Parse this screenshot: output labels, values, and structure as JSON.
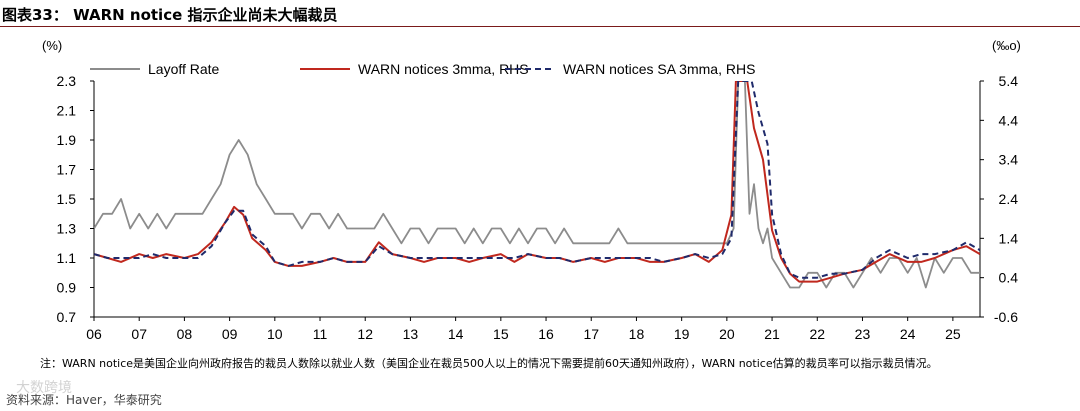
{
  "title": "图表33： WARN notice 指示企业尚未大幅裁员",
  "note": "注：WARN notice是美国企业向州政府报告的裁员人数除以就业人数（美国企业在裁员500人以上的情况下需要提前60天通知州政府），WARN notice估算的裁员率可以指示裁员情况。",
  "source": "资料来源：Haver，华泰研究",
  "watermark": "大数跨境",
  "chart_data": {
    "type": "line",
    "y_left": {
      "unit_label": "(%)",
      "range": [
        0.7,
        2.3
      ],
      "ticks": [
        "0.7",
        "0.9",
        "1.1",
        "1.3",
        "1.5",
        "1.7",
        "1.9",
        "2.1",
        "2.3"
      ]
    },
    "y_right": {
      "unit_label": "(‰o)",
      "range": [
        -0.6,
        5.4
      ],
      "ticks": [
        "-0.6",
        "0.4",
        "1.4",
        "2.4",
        "3.4",
        "4.4",
        "5.4"
      ]
    },
    "x_axis": {
      "range": [
        2006.0,
        2025.6
      ],
      "ticks": [
        "06",
        "07",
        "08",
        "09",
        "10",
        "11",
        "12",
        "13",
        "14",
        "15",
        "16",
        "17",
        "18",
        "19",
        "20",
        "21",
        "22",
        "23",
        "24",
        "25"
      ]
    },
    "legend_position": "top",
    "series": [
      {
        "name": "Layoff Rate",
        "axis": "left",
        "color": "#8c8c8c",
        "style": "solid",
        "points": [
          [
            2006.0,
            1.3
          ],
          [
            2006.2,
            1.4
          ],
          [
            2006.4,
            1.4
          ],
          [
            2006.6,
            1.5
          ],
          [
            2006.8,
            1.3
          ],
          [
            2007.0,
            1.4
          ],
          [
            2007.2,
            1.3
          ],
          [
            2007.4,
            1.4
          ],
          [
            2007.6,
            1.3
          ],
          [
            2007.8,
            1.4
          ],
          [
            2008.0,
            1.4
          ],
          [
            2008.2,
            1.4
          ],
          [
            2008.4,
            1.4
          ],
          [
            2008.6,
            1.5
          ],
          [
            2008.8,
            1.6
          ],
          [
            2009.0,
            1.8
          ],
          [
            2009.2,
            1.9
          ],
          [
            2009.4,
            1.8
          ],
          [
            2009.6,
            1.6
          ],
          [
            2009.8,
            1.5
          ],
          [
            2010.0,
            1.4
          ],
          [
            2010.2,
            1.4
          ],
          [
            2010.4,
            1.4
          ],
          [
            2010.6,
            1.3
          ],
          [
            2010.8,
            1.4
          ],
          [
            2011.0,
            1.4
          ],
          [
            2011.2,
            1.3
          ],
          [
            2011.4,
            1.4
          ],
          [
            2011.6,
            1.3
          ],
          [
            2011.8,
            1.3
          ],
          [
            2012.0,
            1.3
          ],
          [
            2012.2,
            1.3
          ],
          [
            2012.4,
            1.4
          ],
          [
            2012.6,
            1.3
          ],
          [
            2012.8,
            1.2
          ],
          [
            2013.0,
            1.3
          ],
          [
            2013.2,
            1.3
          ],
          [
            2013.4,
            1.2
          ],
          [
            2013.6,
            1.3
          ],
          [
            2013.8,
            1.3
          ],
          [
            2014.0,
            1.3
          ],
          [
            2014.2,
            1.2
          ],
          [
            2014.4,
            1.3
          ],
          [
            2014.6,
            1.2
          ],
          [
            2014.8,
            1.3
          ],
          [
            2015.0,
            1.3
          ],
          [
            2015.2,
            1.2
          ],
          [
            2015.4,
            1.3
          ],
          [
            2015.6,
            1.2
          ],
          [
            2015.8,
            1.3
          ],
          [
            2016.0,
            1.3
          ],
          [
            2016.2,
            1.2
          ],
          [
            2016.4,
            1.3
          ],
          [
            2016.6,
            1.2
          ],
          [
            2016.8,
            1.2
          ],
          [
            2017.0,
            1.2
          ],
          [
            2017.2,
            1.2
          ],
          [
            2017.4,
            1.2
          ],
          [
            2017.6,
            1.3
          ],
          [
            2017.8,
            1.2
          ],
          [
            2018.0,
            1.2
          ],
          [
            2018.2,
            1.2
          ],
          [
            2018.4,
            1.2
          ],
          [
            2018.6,
            1.2
          ],
          [
            2018.8,
            1.2
          ],
          [
            2019.0,
            1.2
          ],
          [
            2019.2,
            1.2
          ],
          [
            2019.4,
            1.2
          ],
          [
            2019.6,
            1.2
          ],
          [
            2019.8,
            1.2
          ],
          [
            2020.0,
            1.2
          ],
          [
            2020.15,
            1.3
          ],
          [
            2020.25,
            2.3
          ],
          [
            2020.4,
            2.3
          ],
          [
            2020.5,
            1.4
          ],
          [
            2020.6,
            1.6
          ],
          [
            2020.7,
            1.3
          ],
          [
            2020.8,
            1.2
          ],
          [
            2020.9,
            1.3
          ],
          [
            2021.0,
            1.1
          ],
          [
            2021.2,
            1.0
          ],
          [
            2021.4,
            0.9
          ],
          [
            2021.6,
            0.9
          ],
          [
            2021.8,
            1.0
          ],
          [
            2022.0,
            1.0
          ],
          [
            2022.2,
            0.9
          ],
          [
            2022.4,
            1.0
          ],
          [
            2022.6,
            1.0
          ],
          [
            2022.8,
            0.9
          ],
          [
            2023.0,
            1.0
          ],
          [
            2023.2,
            1.1
          ],
          [
            2023.4,
            1.0
          ],
          [
            2023.6,
            1.1
          ],
          [
            2023.8,
            1.1
          ],
          [
            2024.0,
            1.0
          ],
          [
            2024.2,
            1.1
          ],
          [
            2024.4,
            0.9
          ],
          [
            2024.6,
            1.1
          ],
          [
            2024.8,
            1.0
          ],
          [
            2025.0,
            1.1
          ],
          [
            2025.2,
            1.1
          ],
          [
            2025.4,
            1.0
          ],
          [
            2025.6,
            1.0
          ]
        ]
      },
      {
        "name": "WARN notices 3mma, RHS",
        "axis": "right",
        "color": "#c0281e",
        "style": "solid",
        "points": [
          [
            2006.0,
            1.0
          ],
          [
            2006.3,
            0.9
          ],
          [
            2006.6,
            0.8
          ],
          [
            2007.0,
            1.0
          ],
          [
            2007.3,
            0.9
          ],
          [
            2007.6,
            1.0
          ],
          [
            2008.0,
            0.9
          ],
          [
            2008.3,
            1.0
          ],
          [
            2008.6,
            1.3
          ],
          [
            2008.9,
            1.8
          ],
          [
            2009.1,
            2.2
          ],
          [
            2009.3,
            2.0
          ],
          [
            2009.5,
            1.4
          ],
          [
            2009.8,
            1.1
          ],
          [
            2010.0,
            0.8
          ],
          [
            2010.3,
            0.7
          ],
          [
            2010.6,
            0.7
          ],
          [
            2011.0,
            0.8
          ],
          [
            2011.3,
            0.9
          ],
          [
            2011.6,
            0.8
          ],
          [
            2012.0,
            0.8
          ],
          [
            2012.3,
            1.3
          ],
          [
            2012.6,
            1.0
          ],
          [
            2013.0,
            0.9
          ],
          [
            2013.3,
            0.8
          ],
          [
            2013.6,
            0.9
          ],
          [
            2014.0,
            0.9
          ],
          [
            2014.3,
            0.8
          ],
          [
            2014.6,
            0.9
          ],
          [
            2015.0,
            1.0
          ],
          [
            2015.3,
            0.8
          ],
          [
            2015.6,
            1.0
          ],
          [
            2016.0,
            0.9
          ],
          [
            2016.3,
            0.9
          ],
          [
            2016.6,
            0.8
          ],
          [
            2017.0,
            0.9
          ],
          [
            2017.3,
            0.8
          ],
          [
            2017.6,
            0.9
          ],
          [
            2018.0,
            0.9
          ],
          [
            2018.3,
            0.8
          ],
          [
            2018.6,
            0.8
          ],
          [
            2019.0,
            0.9
          ],
          [
            2019.3,
            1.0
          ],
          [
            2019.6,
            0.8
          ],
          [
            2019.9,
            1.1
          ],
          [
            2020.1,
            2.0
          ],
          [
            2020.2,
            5.4
          ],
          [
            2020.35,
            5.4
          ],
          [
            2020.45,
            5.4
          ],
          [
            2020.6,
            4.2
          ],
          [
            2020.8,
            3.4
          ],
          [
            2021.0,
            1.6
          ],
          [
            2021.2,
            0.9
          ],
          [
            2021.4,
            0.5
          ],
          [
            2021.6,
            0.3
          ],
          [
            2021.8,
            0.3
          ],
          [
            2022.0,
            0.3
          ],
          [
            2022.3,
            0.4
          ],
          [
            2022.6,
            0.5
          ],
          [
            2023.0,
            0.6
          ],
          [
            2023.3,
            0.8
          ],
          [
            2023.6,
            1.0
          ],
          [
            2024.0,
            0.8
          ],
          [
            2024.3,
            0.8
          ],
          [
            2024.6,
            0.9
          ],
          [
            2025.0,
            1.1
          ],
          [
            2025.3,
            1.2
          ],
          [
            2025.6,
            1.0
          ]
        ]
      },
      {
        "name": "WARN notices SA 3mma, RHS",
        "axis": "right",
        "color": "#1f2a6b",
        "style": "dashed",
        "points": [
          [
            2006.0,
            1.0
          ],
          [
            2006.3,
            0.9
          ],
          [
            2006.6,
            0.9
          ],
          [
            2007.0,
            0.9
          ],
          [
            2007.3,
            1.0
          ],
          [
            2007.6,
            0.9
          ],
          [
            2008.0,
            0.9
          ],
          [
            2008.3,
            0.9
          ],
          [
            2008.6,
            1.2
          ],
          [
            2008.9,
            1.8
          ],
          [
            2009.1,
            2.1
          ],
          [
            2009.3,
            2.1
          ],
          [
            2009.5,
            1.5
          ],
          [
            2009.8,
            1.2
          ],
          [
            2010.0,
            0.8
          ],
          [
            2010.3,
            0.7
          ],
          [
            2010.6,
            0.8
          ],
          [
            2011.0,
            0.8
          ],
          [
            2011.3,
            0.9
          ],
          [
            2011.6,
            0.8
          ],
          [
            2012.0,
            0.8
          ],
          [
            2012.3,
            1.2
          ],
          [
            2012.6,
            1.0
          ],
          [
            2013.0,
            0.9
          ],
          [
            2013.3,
            0.9
          ],
          [
            2013.6,
            0.9
          ],
          [
            2014.0,
            0.9
          ],
          [
            2014.3,
            0.9
          ],
          [
            2014.6,
            0.9
          ],
          [
            2015.0,
            0.9
          ],
          [
            2015.3,
            0.9
          ],
          [
            2015.6,
            1.0
          ],
          [
            2016.0,
            0.9
          ],
          [
            2016.3,
            0.9
          ],
          [
            2016.6,
            0.8
          ],
          [
            2017.0,
            0.9
          ],
          [
            2017.3,
            0.9
          ],
          [
            2017.6,
            0.9
          ],
          [
            2018.0,
            0.9
          ],
          [
            2018.3,
            0.9
          ],
          [
            2018.6,
            0.8
          ],
          [
            2019.0,
            0.9
          ],
          [
            2019.3,
            1.0
          ],
          [
            2019.6,
            0.9
          ],
          [
            2019.9,
            1.0
          ],
          [
            2020.1,
            1.4
          ],
          [
            2020.25,
            5.4
          ],
          [
            2020.45,
            5.4
          ],
          [
            2020.55,
            5.4
          ],
          [
            2020.7,
            4.6
          ],
          [
            2020.9,
            3.8
          ],
          [
            2021.0,
            2.0
          ],
          [
            2021.2,
            1.0
          ],
          [
            2021.4,
            0.5
          ],
          [
            2021.6,
            0.4
          ],
          [
            2021.8,
            0.4
          ],
          [
            2022.0,
            0.4
          ],
          [
            2022.3,
            0.5
          ],
          [
            2022.6,
            0.5
          ],
          [
            2023.0,
            0.6
          ],
          [
            2023.3,
            0.9
          ],
          [
            2023.6,
            1.1
          ],
          [
            2024.0,
            0.9
          ],
          [
            2024.3,
            1.0
          ],
          [
            2024.6,
            1.0
          ],
          [
            2025.0,
            1.1
          ],
          [
            2025.3,
            1.3
          ],
          [
            2025.6,
            1.1
          ]
        ]
      }
    ]
  }
}
